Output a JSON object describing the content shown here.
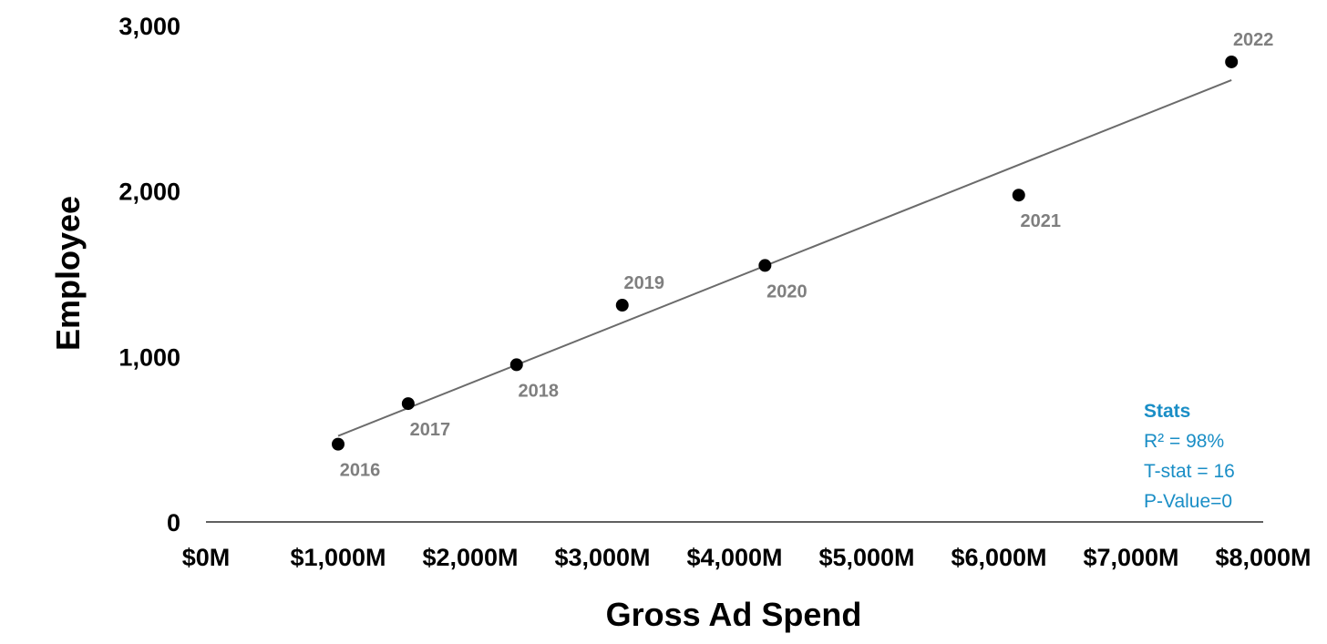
{
  "chart_data": {
    "type": "scatter",
    "xlabel": "Gross Ad Spend",
    "ylabel": "Employee",
    "xlim": [
      0,
      8000
    ],
    "ylim": [
      0,
      3000
    ],
    "x_ticks": [
      0,
      1000,
      2000,
      3000,
      4000,
      5000,
      6000,
      7000,
      8000
    ],
    "x_tick_labels": [
      "$0M",
      "$1,000M",
      "$2,000M",
      "$3,000M",
      "$4,000M",
      "$5,000M",
      "$6,000M",
      "$7,000M",
      "$8,000M"
    ],
    "y_ticks": [
      0,
      1000,
      2000,
      3000
    ],
    "y_tick_labels": [
      "0",
      "1,000",
      "2,000",
      "3,000"
    ],
    "grid": false,
    "points": [
      {
        "label": "2016",
        "x": 1000,
        "y": 470,
        "label_pos": "below"
      },
      {
        "label": "2017",
        "x": 1530,
        "y": 715,
        "label_pos": "below"
      },
      {
        "label": "2018",
        "x": 2350,
        "y": 950,
        "label_pos": "below"
      },
      {
        "label": "2019",
        "x": 3150,
        "y": 1310,
        "label_pos": "above"
      },
      {
        "label": "2020",
        "x": 4230,
        "y": 1550,
        "label_pos": "below"
      },
      {
        "label": "2021",
        "x": 6150,
        "y": 1975,
        "label_pos": "below"
      },
      {
        "label": "2022",
        "x": 7760,
        "y": 2780,
        "label_pos": "above"
      }
    ],
    "trendline": {
      "x": [
        1000,
        7760
      ],
      "y": [
        520,
        2670
      ]
    }
  },
  "stats": {
    "title": "Stats",
    "lines": [
      "R² = 98%",
      "T-stat = 16",
      "P-Value=0"
    ]
  },
  "colors": {
    "point": "#000000",
    "trendline": "#6b6b6b",
    "point_label": "#7f7f7f",
    "axis": "#000000",
    "stats": "#1a8ec6"
  }
}
